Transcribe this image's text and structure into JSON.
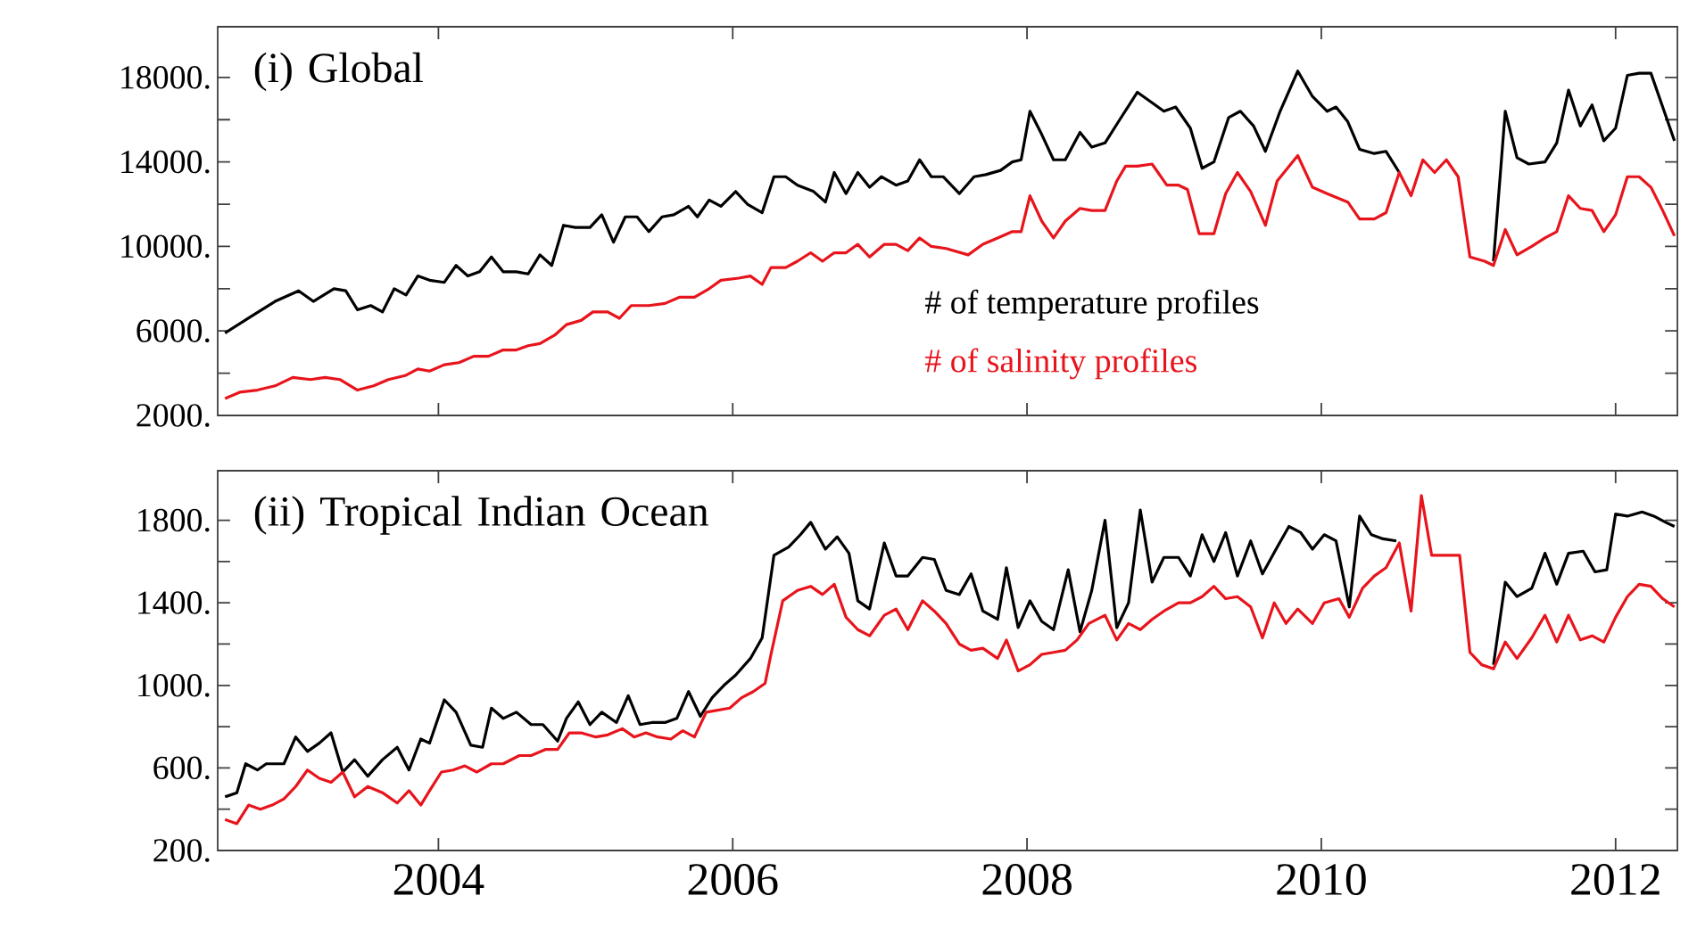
{
  "chart_data": [
    {
      "type": "line",
      "title": "(i) Global",
      "xlim": [
        2002.5,
        2012.42
      ],
      "ylim": [
        2000,
        20400
      ],
      "xticks": [
        2004,
        2006,
        2008,
        2010,
        2012
      ],
      "yticks": [
        {
          "value": 2000,
          "label": "2000."
        },
        {
          "value": 4000,
          "label": null
        },
        {
          "value": 6000,
          "label": "6000."
        },
        {
          "value": 8000,
          "label": null
        },
        {
          "value": 10000,
          "label": "10000."
        },
        {
          "value": 12000,
          "label": null
        },
        {
          "value": 14000,
          "label": "14000."
        },
        {
          "value": 16000,
          "label": null
        },
        {
          "value": 18000,
          "label": "18000."
        }
      ],
      "tick_labels": "y",
      "legend": "bottom",
      "line_style": "solid",
      "series": [
        {
          "name": "# of temperature profiles",
          "color": "#000000",
          "x": [
            2002.55,
            2002.73,
            2002.89,
            2003.05,
            2003.15,
            2003.29,
            2003.37,
            2003.45,
            2003.54,
            2003.62,
            2003.7,
            2003.78,
            2003.86,
            2003.94,
            2004.04,
            2004.12,
            2004.2,
            2004.28,
            2004.36,
            2004.44,
            2004.53,
            2004.61,
            2004.69,
            2004.77,
            2004.85,
            2004.93,
            2005.03,
            2005.11,
            2005.19,
            2005.27,
            2005.35,
            2005.43,
            2005.52,
            2005.6,
            2005.7,
            2005.76,
            2005.84,
            2005.92,
            2006.02,
            2006.1,
            2006.2,
            2006.28,
            2006.36,
            2006.44,
            2006.55,
            2006.63,
            2006.69,
            2006.77,
            2006.85,
            2006.93,
            2007.01,
            2007.11,
            2007.19,
            2007.27,
            2007.35,
            2007.43,
            2007.54,
            2007.64,
            2007.72,
            2007.82,
            2007.9,
            2007.96,
            2008.02,
            2008.1,
            2008.18,
            2008.26,
            2008.36,
            2008.44,
            2008.53,
            2008.63,
            2008.75,
            2008.85,
            2008.93,
            2009.01,
            2009.11,
            2009.19,
            2009.27,
            2009.37,
            2009.45,
            2009.54,
            2009.62,
            2009.72,
            2009.84,
            2009.94,
            2010.04,
            2010.1,
            2010.18,
            2010.26,
            2010.36,
            2010.44,
            2010.53,
            2010.85,
            2011.17,
            2011.25,
            2011.33,
            2011.41,
            2011.52,
            2011.6,
            2011.68,
            2011.76,
            2011.84,
            2011.92,
            2012.0,
            2012.08,
            2012.16,
            2012.24,
            2012.32,
            2012.4
          ],
          "values": [
            5900,
            6700,
            7400,
            7900,
            7400,
            8000,
            7900,
            7000,
            7200,
            6900,
            8000,
            7700,
            8600,
            8400,
            8300,
            9100,
            8600,
            8800,
            9500,
            8800,
            8800,
            8700,
            9600,
            9100,
            11000,
            10900,
            10900,
            11500,
            10200,
            11400,
            11400,
            10700,
            11400,
            11500,
            11900,
            11400,
            12200,
            11900,
            12600,
            12000,
            11600,
            13300,
            13300,
            12900,
            12600,
            12100,
            13500,
            12500,
            13500,
            12800,
            13300,
            12900,
            13100,
            14100,
            13300,
            13300,
            12500,
            13300,
            13400,
            13600,
            14000,
            14100,
            16400,
            15300,
            14100,
            14100,
            15400,
            14700,
            14900,
            16000,
            17300,
            16800,
            16400,
            16600,
            15600,
            13700,
            14000,
            16100,
            16400,
            15700,
            14500,
            16400,
            18300,
            17100,
            16400,
            16600,
            15900,
            14600,
            14400,
            14500,
            13500,
            null,
            9300,
            16400,
            14200,
            13900,
            14000,
            14900,
            17400,
            15700,
            16700,
            15000,
            15600,
            18100,
            18200,
            18200,
            16600,
            15000
          ]
        },
        {
          "name": "# of salinity profiles",
          "color": "#e8141c",
          "x": [
            2002.55,
            2002.65,
            2002.77,
            2002.89,
            2003.01,
            2003.13,
            2003.23,
            2003.33,
            2003.45,
            2003.56,
            2003.66,
            2003.78,
            2003.86,
            2003.94,
            2004.04,
            2004.14,
            2004.24,
            2004.34,
            2004.44,
            2004.53,
            2004.61,
            2004.69,
            2004.79,
            2004.87,
            2004.97,
            2005.05,
            2005.15,
            2005.23,
            2005.31,
            2005.43,
            2005.54,
            2005.64,
            2005.74,
            2005.84,
            2005.92,
            2006.04,
            2006.12,
            2006.2,
            2006.26,
            2006.36,
            2006.44,
            2006.53,
            2006.61,
            2006.69,
            2006.77,
            2006.85,
            2006.93,
            2007.03,
            2007.11,
            2007.19,
            2007.27,
            2007.35,
            2007.45,
            2007.6,
            2007.7,
            2007.8,
            2007.9,
            2007.96,
            2008.02,
            2008.1,
            2008.18,
            2008.26,
            2008.36,
            2008.44,
            2008.53,
            2008.61,
            2008.67,
            2008.75,
            2008.85,
            2008.95,
            2009.03,
            2009.09,
            2009.17,
            2009.27,
            2009.35,
            2009.43,
            2009.52,
            2009.62,
            2009.7,
            2009.84,
            2009.94,
            2010.04,
            2010.18,
            2010.26,
            2010.36,
            2010.44,
            2010.53,
            2010.61,
            2010.69,
            2010.77,
            2010.85,
            2010.93,
            2011.01,
            2011.11,
            2011.17,
            2011.25,
            2011.33,
            2011.43,
            2011.52,
            2011.6,
            2011.68,
            2011.76,
            2011.84,
            2011.92,
            2012.0,
            2012.08,
            2012.16,
            2012.24,
            2012.32,
            2012.4
          ],
          "values": [
            2800,
            3100,
            3200,
            3400,
            3800,
            3700,
            3800,
            3700,
            3200,
            3400,
            3700,
            3900,
            4200,
            4100,
            4400,
            4500,
            4800,
            4800,
            5100,
            5100,
            5300,
            5400,
            5800,
            6300,
            6500,
            6900,
            6900,
            6600,
            7200,
            7200,
            7300,
            7600,
            7600,
            8000,
            8400,
            8500,
            8600,
            8200,
            9000,
            9000,
            9300,
            9700,
            9300,
            9700,
            9700,
            10100,
            9500,
            10100,
            10100,
            9800,
            10400,
            10000,
            9900,
            9600,
            10100,
            10400,
            10700,
            10700,
            12400,
            11200,
            10400,
            11200,
            11800,
            11700,
            11700,
            13100,
            13800,
            13800,
            13900,
            12900,
            12900,
            12700,
            10600,
            10600,
            12500,
            13500,
            12600,
            11000,
            13100,
            14300,
            12800,
            12500,
            12100,
            11300,
            11300,
            11600,
            13500,
            12400,
            14100,
            13500,
            14100,
            13300,
            9500,
            9300,
            9100,
            10800,
            9600,
            10000,
            10400,
            10700,
            12400,
            11800,
            11700,
            10700,
            11500,
            13300,
            13300,
            12800,
            11700,
            10500
          ]
        }
      ]
    },
    {
      "type": "line",
      "title": "(ii) Tropical Indian Ocean",
      "xlim": [
        2002.5,
        2012.42
      ],
      "ylim": [
        200,
        2040
      ],
      "xticks": [
        2004,
        2006,
        2008,
        2010,
        2012
      ],
      "yticks": [
        {
          "value": 200,
          "label": "200."
        },
        {
          "value": 400,
          "label": null
        },
        {
          "value": 600,
          "label": "600."
        },
        {
          "value": 800,
          "label": null
        },
        {
          "value": 1000,
          "label": "1000."
        },
        {
          "value": 1200,
          "label": null
        },
        {
          "value": 1400,
          "label": "1400."
        },
        {
          "value": 1600,
          "label": null
        },
        {
          "value": 1800,
          "label": "1800."
        }
      ],
      "line_style": "solid",
      "series": [
        {
          "color": "#000000",
          "x": [
            2002.55,
            2002.63,
            2002.69,
            2002.77,
            2002.83,
            2002.95,
            2003.03,
            2003.11,
            2003.19,
            2003.27,
            2003.35,
            2003.43,
            2003.52,
            2003.62,
            2003.72,
            2003.8,
            2003.88,
            2003.94,
            2004.04,
            2004.12,
            2004.22,
            2004.3,
            2004.36,
            2004.44,
            2004.53,
            2004.63,
            2004.71,
            2004.81,
            2004.87,
            2004.95,
            2005.03,
            2005.11,
            2005.21,
            2005.29,
            2005.37,
            2005.45,
            2005.54,
            2005.62,
            2005.7,
            2005.78,
            2005.86,
            2005.94,
            2006.02,
            2006.12,
            2006.2,
            2006.28,
            2006.38,
            2006.46,
            2006.53,
            2006.63,
            2006.71,
            2006.79,
            2006.85,
            2006.93,
            2007.03,
            2007.11,
            2007.19,
            2007.29,
            2007.37,
            2007.45,
            2007.54,
            2007.62,
            2007.7,
            2007.8,
            2007.86,
            2007.94,
            2008.02,
            2008.1,
            2008.18,
            2008.28,
            2008.36,
            2008.44,
            2008.53,
            2008.61,
            2008.69,
            2008.77,
            2008.85,
            2008.93,
            2009.03,
            2009.11,
            2009.19,
            2009.27,
            2009.35,
            2009.43,
            2009.52,
            2009.6,
            2009.7,
            2009.78,
            2009.86,
            2009.94,
            2010.02,
            2010.1,
            2010.19,
            2010.26,
            2010.34,
            2010.42,
            2010.51,
            2010.85,
            2011.17,
            2011.25,
            2011.33,
            2011.43,
            2011.52,
            2011.6,
            2011.68,
            2011.78,
            2011.86,
            2011.94,
            2012.0,
            2012.08,
            2012.18,
            2012.26,
            2012.34,
            2012.4
          ],
          "values": [
            460,
            480,
            620,
            590,
            620,
            620,
            750,
            680,
            720,
            770,
            580,
            640,
            560,
            640,
            700,
            590,
            740,
            720,
            930,
            870,
            710,
            700,
            890,
            840,
            870,
            810,
            810,
            730,
            840,
            920,
            810,
            870,
            820,
            950,
            810,
            820,
            820,
            840,
            970,
            850,
            940,
            1000,
            1050,
            1130,
            1230,
            1630,
            1670,
            1730,
            1790,
            1660,
            1720,
            1640,
            1410,
            1370,
            1690,
            1530,
            1530,
            1620,
            1610,
            1460,
            1440,
            1540,
            1360,
            1320,
            1570,
            1280,
            1410,
            1310,
            1270,
            1560,
            1260,
            1460,
            1800,
            1280,
            1400,
            1850,
            1500,
            1620,
            1620,
            1530,
            1730,
            1600,
            1740,
            1530,
            1700,
            1540,
            1670,
            1770,
            1740,
            1660,
            1730,
            1700,
            1380,
            1820,
            1730,
            1710,
            1700,
            null,
            1100,
            1500,
            1430,
            1470,
            1640,
            1490,
            1640,
            1650,
            1550,
            1560,
            1830,
            1820,
            1840,
            1820,
            1790,
            1770
          ]
        },
        {
          "color": "#e8141c",
          "x": [
            2002.55,
            2002.63,
            2002.71,
            2002.79,
            2002.87,
            2002.95,
            2003.03,
            2003.11,
            2003.19,
            2003.27,
            2003.35,
            2003.43,
            2003.52,
            2003.62,
            2003.72,
            2003.8,
            2003.88,
            2003.94,
            2004.02,
            2004.1,
            2004.18,
            2004.26,
            2004.36,
            2004.44,
            2004.55,
            2004.63,
            2004.73,
            2004.81,
            2004.89,
            2004.97,
            2005.07,
            2005.15,
            2005.25,
            2005.33,
            2005.41,
            2005.49,
            2005.58,
            2005.66,
            2005.74,
            2005.82,
            2005.9,
            2005.98,
            2006.06,
            2006.14,
            2006.22,
            2006.26,
            2006.34,
            2006.44,
            2006.53,
            2006.61,
            2006.69,
            2006.77,
            2006.85,
            2006.93,
            2007.03,
            2007.11,
            2007.19,
            2007.29,
            2007.37,
            2007.45,
            2007.54,
            2007.62,
            2007.7,
            2007.8,
            2007.86,
            2007.94,
            2008.02,
            2008.1,
            2008.18,
            2008.26,
            2008.34,
            2008.42,
            2008.53,
            2008.61,
            2008.69,
            2008.77,
            2008.85,
            2008.93,
            2009.03,
            2009.11,
            2009.19,
            2009.27,
            2009.35,
            2009.43,
            2009.52,
            2009.6,
            2009.68,
            2009.76,
            2009.84,
            2009.94,
            2010.02,
            2010.12,
            2010.19,
            2010.28,
            2010.36,
            2010.44,
            2010.53,
            2010.61,
            2010.68,
            2010.75,
            2010.85,
            2010.94,
            2011.01,
            2011.09,
            2011.17,
            2011.25,
            2011.33,
            2011.43,
            2011.52,
            2011.6,
            2011.68,
            2011.76,
            2011.84,
            2011.92,
            2012.0,
            2012.08,
            2012.16,
            2012.24,
            2012.32,
            2012.4
          ],
          "values": [
            350,
            330,
            420,
            400,
            420,
            450,
            510,
            590,
            550,
            530,
            580,
            460,
            510,
            480,
            430,
            490,
            420,
            490,
            580,
            590,
            610,
            580,
            620,
            620,
            660,
            660,
            690,
            690,
            770,
            770,
            750,
            760,
            790,
            750,
            770,
            750,
            740,
            780,
            750,
            870,
            880,
            890,
            940,
            970,
            1010,
            1150,
            1410,
            1460,
            1480,
            1440,
            1490,
            1330,
            1270,
            1240,
            1340,
            1370,
            1270,
            1410,
            1360,
            1300,
            1200,
            1170,
            1180,
            1130,
            1220,
            1070,
            1100,
            1150,
            1160,
            1170,
            1220,
            1300,
            1340,
            1220,
            1300,
            1270,
            1320,
            1360,
            1400,
            1400,
            1430,
            1480,
            1420,
            1430,
            1380,
            1230,
            1400,
            1300,
            1370,
            1300,
            1400,
            1420,
            1330,
            1470,
            1530,
            1570,
            1690,
            1360,
            1920,
            1630,
            1630,
            1630,
            1160,
            1100,
            1080,
            1210,
            1130,
            1230,
            1340,
            1210,
            1340,
            1220,
            1240,
            1210,
            1330,
            1430,
            1490,
            1480,
            1420,
            1380
          ]
        }
      ]
    }
  ]
}
